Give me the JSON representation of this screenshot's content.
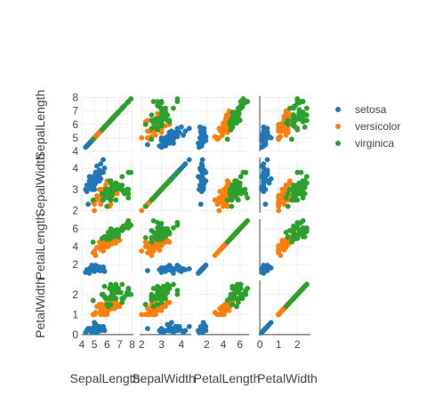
{
  "chart_data": {
    "type": "scatter",
    "subtype": "scatter-matrix",
    "dimensions": [
      {
        "name": "SepalLength",
        "range": [
          4,
          8.1
        ],
        "ticks": [
          4,
          5,
          6,
          7,
          8
        ]
      },
      {
        "name": "SepalWidth",
        "range": [
          1.9,
          4.5
        ],
        "ticks": [
          2,
          3,
          4
        ]
      },
      {
        "name": "PetalLength",
        "range": [
          0.9,
          7.1
        ],
        "ticks": [
          2,
          4,
          6
        ]
      },
      {
        "name": "PetalWidth",
        "range": [
          -0.05,
          2.7
        ],
        "ticks": [
          0,
          1,
          2
        ]
      }
    ],
    "diagonal_visible": true,
    "grid": true,
    "legend_position": "top-right",
    "series": [
      {
        "name": "setosa",
        "color": "#1f77b4",
        "points": [
          [
            5.1,
            3.5,
            1.4,
            0.2
          ],
          [
            4.9,
            3.0,
            1.4,
            0.2
          ],
          [
            4.7,
            3.2,
            1.3,
            0.2
          ],
          [
            4.6,
            3.1,
            1.5,
            0.2
          ],
          [
            5.0,
            3.6,
            1.4,
            0.2
          ],
          [
            5.4,
            3.9,
            1.7,
            0.4
          ],
          [
            4.6,
            3.4,
            1.4,
            0.3
          ],
          [
            5.0,
            3.4,
            1.5,
            0.2
          ],
          [
            4.4,
            2.9,
            1.4,
            0.2
          ],
          [
            4.9,
            3.1,
            1.5,
            0.1
          ],
          [
            5.4,
            3.7,
            1.5,
            0.2
          ],
          [
            4.8,
            3.4,
            1.6,
            0.2
          ],
          [
            4.8,
            3.0,
            1.4,
            0.1
          ],
          [
            4.3,
            3.0,
            1.1,
            0.1
          ],
          [
            5.8,
            4.0,
            1.2,
            0.2
          ],
          [
            5.7,
            4.4,
            1.5,
            0.4
          ],
          [
            5.4,
            3.9,
            1.3,
            0.4
          ],
          [
            5.1,
            3.5,
            1.4,
            0.3
          ],
          [
            5.7,
            3.8,
            1.7,
            0.3
          ],
          [
            5.1,
            3.8,
            1.5,
            0.3
          ],
          [
            5.4,
            3.4,
            1.7,
            0.2
          ],
          [
            5.1,
            3.7,
            1.5,
            0.4
          ],
          [
            4.6,
            3.6,
            1.0,
            0.2
          ],
          [
            5.1,
            3.3,
            1.7,
            0.5
          ],
          [
            4.8,
            3.4,
            1.9,
            0.2
          ],
          [
            5.0,
            3.0,
            1.6,
            0.2
          ],
          [
            5.0,
            3.4,
            1.6,
            0.4
          ],
          [
            5.2,
            3.5,
            1.5,
            0.2
          ],
          [
            5.2,
            3.4,
            1.4,
            0.2
          ],
          [
            4.7,
            3.2,
            1.6,
            0.2
          ],
          [
            4.8,
            3.1,
            1.6,
            0.2
          ],
          [
            5.4,
            3.4,
            1.5,
            0.4
          ],
          [
            5.2,
            4.1,
            1.5,
            0.1
          ],
          [
            5.5,
            4.2,
            1.4,
            0.2
          ],
          [
            4.9,
            3.1,
            1.5,
            0.2
          ],
          [
            5.0,
            3.2,
            1.2,
            0.2
          ],
          [
            5.5,
            3.5,
            1.3,
            0.2
          ],
          [
            4.9,
            3.6,
            1.4,
            0.1
          ],
          [
            4.4,
            3.0,
            1.3,
            0.2
          ],
          [
            5.1,
            3.4,
            1.5,
            0.2
          ],
          [
            5.0,
            3.5,
            1.3,
            0.3
          ],
          [
            4.5,
            2.3,
            1.3,
            0.3
          ],
          [
            4.4,
            3.2,
            1.3,
            0.2
          ],
          [
            5.0,
            3.5,
            1.6,
            0.6
          ],
          [
            5.1,
            3.8,
            1.9,
            0.4
          ],
          [
            4.8,
            3.0,
            1.4,
            0.3
          ],
          [
            5.1,
            3.8,
            1.6,
            0.2
          ],
          [
            4.6,
            3.2,
            1.4,
            0.2
          ],
          [
            5.3,
            3.7,
            1.5,
            0.2
          ],
          [
            5.0,
            3.3,
            1.4,
            0.2
          ]
        ]
      },
      {
        "name": "versicolor",
        "color": "#ff7f0e",
        "points": [
          [
            7.0,
            3.2,
            4.7,
            1.4
          ],
          [
            6.4,
            3.2,
            4.5,
            1.5
          ],
          [
            6.9,
            3.1,
            4.9,
            1.5
          ],
          [
            5.5,
            2.3,
            4.0,
            1.3
          ],
          [
            6.5,
            2.8,
            4.6,
            1.5
          ],
          [
            5.7,
            2.8,
            4.5,
            1.3
          ],
          [
            6.3,
            3.3,
            4.7,
            1.6
          ],
          [
            4.9,
            2.4,
            3.3,
            1.0
          ],
          [
            6.6,
            2.9,
            4.6,
            1.3
          ],
          [
            5.2,
            2.7,
            3.9,
            1.4
          ],
          [
            5.0,
            2.0,
            3.5,
            1.0
          ],
          [
            5.9,
            3.0,
            4.2,
            1.5
          ],
          [
            6.0,
            2.2,
            4.0,
            1.0
          ],
          [
            6.1,
            2.9,
            4.7,
            1.4
          ],
          [
            5.6,
            2.9,
            3.6,
            1.3
          ],
          [
            6.7,
            3.1,
            4.4,
            1.4
          ],
          [
            5.6,
            3.0,
            4.5,
            1.5
          ],
          [
            5.8,
            2.7,
            4.1,
            1.0
          ],
          [
            6.2,
            2.2,
            4.5,
            1.5
          ],
          [
            5.6,
            2.5,
            3.9,
            1.1
          ],
          [
            5.9,
            3.2,
            4.8,
            1.8
          ],
          [
            6.1,
            2.8,
            4.0,
            1.3
          ],
          [
            6.3,
            2.5,
            4.9,
            1.5
          ],
          [
            6.1,
            2.8,
            4.7,
            1.2
          ],
          [
            6.4,
            2.9,
            4.3,
            1.3
          ],
          [
            6.6,
            3.0,
            4.4,
            1.4
          ],
          [
            6.8,
            2.8,
            4.8,
            1.4
          ],
          [
            6.7,
            3.0,
            5.0,
            1.7
          ],
          [
            6.0,
            2.9,
            4.5,
            1.5
          ],
          [
            5.7,
            2.6,
            3.5,
            1.0
          ],
          [
            5.5,
            2.4,
            3.8,
            1.1
          ],
          [
            5.5,
            2.4,
            3.7,
            1.0
          ],
          [
            5.8,
            2.7,
            3.9,
            1.2
          ],
          [
            6.0,
            2.7,
            5.1,
            1.6
          ],
          [
            5.4,
            3.0,
            4.5,
            1.5
          ],
          [
            6.0,
            3.4,
            4.5,
            1.6
          ],
          [
            6.7,
            3.1,
            4.7,
            1.5
          ],
          [
            6.3,
            2.3,
            4.4,
            1.3
          ],
          [
            5.6,
            3.0,
            4.1,
            1.3
          ],
          [
            5.5,
            2.5,
            4.0,
            1.3
          ],
          [
            5.5,
            2.6,
            4.4,
            1.2
          ],
          [
            6.1,
            3.0,
            4.6,
            1.4
          ],
          [
            5.8,
            2.6,
            4.0,
            1.2
          ],
          [
            5.0,
            2.3,
            3.3,
            1.0
          ],
          [
            5.6,
            2.7,
            4.2,
            1.3
          ],
          [
            5.7,
            3.0,
            4.2,
            1.2
          ],
          [
            5.7,
            2.9,
            4.2,
            1.3
          ],
          [
            6.2,
            2.9,
            4.3,
            1.3
          ],
          [
            5.1,
            2.5,
            3.0,
            1.1
          ],
          [
            5.7,
            2.8,
            4.1,
            1.3
          ]
        ]
      },
      {
        "name": "virginica",
        "color": "#2ca02c",
        "points": [
          [
            6.3,
            3.3,
            6.0,
            2.5
          ],
          [
            5.8,
            2.7,
            5.1,
            1.9
          ],
          [
            7.1,
            3.0,
            5.9,
            2.1
          ],
          [
            6.3,
            2.9,
            5.6,
            1.8
          ],
          [
            6.5,
            3.0,
            5.8,
            2.2
          ],
          [
            7.6,
            3.0,
            6.6,
            2.1
          ],
          [
            4.9,
            2.5,
            4.5,
            1.7
          ],
          [
            7.3,
            2.9,
            6.3,
            1.8
          ],
          [
            6.7,
            2.5,
            5.8,
            1.8
          ],
          [
            7.2,
            3.6,
            6.1,
            2.5
          ],
          [
            6.5,
            3.2,
            5.1,
            2.0
          ],
          [
            6.4,
            2.7,
            5.3,
            1.9
          ],
          [
            6.8,
            3.0,
            5.5,
            2.1
          ],
          [
            5.7,
            2.5,
            5.0,
            2.0
          ],
          [
            5.8,
            2.8,
            5.1,
            2.4
          ],
          [
            6.4,
            3.2,
            5.3,
            2.3
          ],
          [
            6.5,
            3.0,
            5.5,
            1.8
          ],
          [
            7.7,
            3.8,
            6.7,
            2.2
          ],
          [
            7.7,
            2.6,
            6.9,
            2.3
          ],
          [
            6.0,
            2.2,
            5.0,
            1.5
          ],
          [
            6.9,
            3.2,
            5.7,
            2.3
          ],
          [
            5.6,
            2.8,
            4.9,
            2.0
          ],
          [
            7.7,
            2.8,
            6.7,
            2.0
          ],
          [
            6.3,
            2.7,
            4.9,
            1.8
          ],
          [
            6.7,
            3.3,
            5.7,
            2.1
          ],
          [
            7.2,
            3.2,
            6.0,
            1.8
          ],
          [
            6.2,
            2.8,
            4.8,
            1.8
          ],
          [
            6.1,
            3.0,
            4.9,
            1.8
          ],
          [
            6.4,
            2.8,
            5.6,
            2.1
          ],
          [
            7.2,
            3.0,
            5.8,
            1.6
          ],
          [
            7.4,
            2.8,
            6.1,
            1.9
          ],
          [
            7.9,
            3.8,
            6.4,
            2.0
          ],
          [
            6.4,
            2.8,
            5.6,
            2.2
          ],
          [
            6.3,
            2.8,
            5.1,
            1.5
          ],
          [
            6.1,
            2.6,
            5.6,
            1.4
          ],
          [
            7.7,
            3.0,
            6.1,
            2.3
          ],
          [
            6.3,
            3.4,
            5.6,
            2.4
          ],
          [
            6.4,
            3.1,
            5.5,
            1.8
          ],
          [
            6.0,
            3.0,
            4.8,
            1.8
          ],
          [
            6.9,
            3.1,
            5.4,
            2.1
          ],
          [
            6.7,
            3.1,
            5.6,
            2.4
          ],
          [
            6.9,
            3.1,
            5.1,
            2.3
          ],
          [
            5.8,
            2.7,
            5.1,
            1.9
          ],
          [
            6.8,
            3.2,
            5.9,
            2.3
          ],
          [
            6.7,
            3.3,
            5.7,
            2.5
          ],
          [
            6.7,
            3.0,
            5.2,
            2.3
          ],
          [
            6.3,
            2.5,
            5.0,
            1.9
          ],
          [
            6.5,
            3.0,
            5.2,
            2.0
          ],
          [
            6.2,
            3.4,
            5.4,
            2.3
          ],
          [
            5.9,
            3.0,
            5.1,
            1.8
          ]
        ]
      }
    ]
  }
}
